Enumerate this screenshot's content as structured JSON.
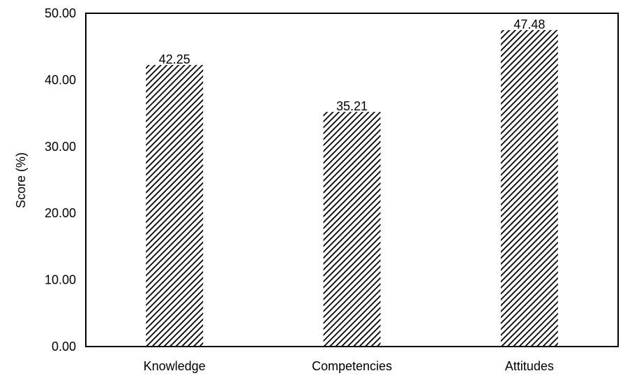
{
  "chart_data": {
    "type": "bar",
    "title": "",
    "xlabel": "",
    "ylabel": "Score (%)",
    "categories": [
      "Knowledge",
      "Competencies",
      "Attitudes"
    ],
    "values": [
      42.25,
      35.21,
      47.48
    ],
    "data_labels": [
      "42.25",
      "35.21",
      "47.48"
    ],
    "ylim": [
      0,
      50
    ],
    "yticks": [
      "0.00",
      "10.00",
      "20.00",
      "30.00",
      "40.00",
      "50.00"
    ],
    "grid": false,
    "legend": "none",
    "bar_fill": "diagonal-hatch",
    "colors": {
      "hatch": "#000000",
      "background": "#ffffff",
      "axis": "#000000"
    }
  }
}
